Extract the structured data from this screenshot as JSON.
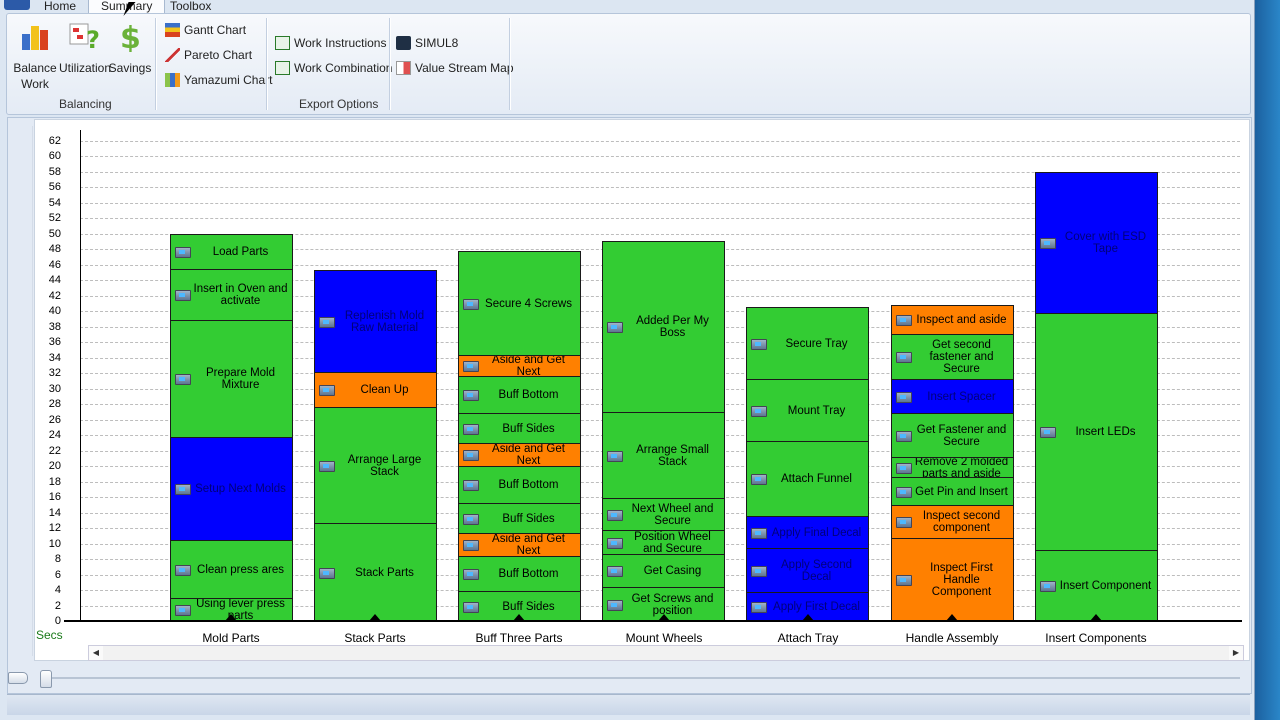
{
  "tabs": [
    "Home",
    "Summary",
    "Toolbox"
  ],
  "active_tab": "Summary",
  "ribbon": {
    "balancing": {
      "label": "Balancing",
      "buttons": [
        "Balance Work",
        "Utilization",
        "Savings"
      ]
    },
    "export": {
      "label": "Export Options",
      "charts": [
        "Gantt Chart",
        "Pareto Chart",
        "Yamazumi Chart"
      ],
      "docs": [
        "Work Instructions",
        "Work Combination"
      ],
      "other": [
        "SIMUL8",
        "Value Stream Map"
      ]
    }
  },
  "chart_data": {
    "type": "bar",
    "stacked": true,
    "ylabel": "Secs",
    "ylim": [
      0,
      62
    ],
    "yticks": [
      0,
      2,
      4,
      6,
      8,
      10,
      12,
      14,
      16,
      18,
      20,
      22,
      24,
      26,
      28,
      30,
      32,
      34,
      36,
      38,
      40,
      42,
      44,
      46,
      48,
      50,
      52,
      54,
      56,
      58,
      60,
      62
    ],
    "grid": true,
    "colors": {
      "value_added": "#33cc33",
      "non_value_added": "#ff8000",
      "blue": "#0000ff"
    },
    "categories": [
      "Mold Parts",
      "Stack Parts",
      "Buff Three Parts",
      "Mount Wheels",
      "Attach Tray",
      "Handle Assembly",
      "Insert Components"
    ],
    "stacks": [
      [
        {
          "label": "Using lever press parts",
          "value": 3.0,
          "color": "#33cc33"
        },
        {
          "label": "Clean press ares",
          "value": 7.5,
          "color": "#33cc33"
        },
        {
          "label": "Setup Next Molds",
          "value": 13.3,
          "color": "#0000ff"
        },
        {
          "label": "Prepare Mold Mixture",
          "value": 15.1,
          "color": "#33cc33"
        },
        {
          "label": "Insert in Oven and activate",
          "value": 6.6,
          "color": "#33cc33"
        },
        {
          "label": "Load Parts",
          "value": 4.5,
          "color": "#33cc33"
        }
      ],
      [
        {
          "label": "Stack Parts",
          "value": 12.7,
          "color": "#33cc33"
        },
        {
          "label": "Arrange Large Stack",
          "value": 15.0,
          "color": "#33cc33"
        },
        {
          "label": "Clean Up",
          "value": 4.4,
          "color": "#ff8000"
        },
        {
          "label": "Replenish Mold Raw Material",
          "value": 13.2,
          "color": "#0000ff"
        }
      ],
      [
        {
          "label": "Buff Sides",
          "value": 3.9,
          "color": "#33cc33"
        },
        {
          "label": "Buff Bottom",
          "value": 4.5,
          "color": "#33cc33"
        },
        {
          "label": "Aside and Get Next",
          "value": 3.0,
          "color": "#ff8000"
        },
        {
          "label": "Buff Sides",
          "value": 3.9,
          "color": "#33cc33"
        },
        {
          "label": "Buff Bottom",
          "value": 4.7,
          "color": "#33cc33"
        },
        {
          "label": "Aside and Get Next",
          "value": 3.0,
          "color": "#ff8000"
        },
        {
          "label": "Buff Sides",
          "value": 3.9,
          "color": "#33cc33"
        },
        {
          "label": "Buff Bottom",
          "value": 4.7,
          "color": "#33cc33"
        },
        {
          "label": "Aside and Get Next",
          "value": 2.8,
          "color": "#ff8000"
        },
        {
          "label": "Secure 4 Screws",
          "value": 13.4,
          "color": "#33cc33"
        }
      ],
      [
        {
          "label": "Get Screws and position",
          "value": 4.4,
          "color": "#33cc33"
        },
        {
          "label": "Get Casing",
          "value": 4.3,
          "color": "#33cc33"
        },
        {
          "label": "Position Wheel and Secure",
          "value": 3.1,
          "color": "#33cc33"
        },
        {
          "label": "Next Wheel and Secure",
          "value": 4.1,
          "color": "#33cc33"
        },
        {
          "label": "Arrange Small Stack",
          "value": 11.1,
          "color": "#33cc33"
        },
        {
          "label": "Added Per My Boss",
          "value": 22.1,
          "color": "#33cc33"
        }
      ],
      [
        {
          "label": "Apply First Decal",
          "value": 3.7,
          "color": "#0000ff"
        },
        {
          "label": "Apply Second Decal",
          "value": 5.7,
          "color": "#0000ff"
        },
        {
          "label": "Apply Final Decal",
          "value": 4.1,
          "color": "#0000ff"
        },
        {
          "label": "Attach Funnel",
          "value": 9.7,
          "color": "#33cc33"
        },
        {
          "label": "Mount Tray",
          "value": 8.0,
          "color": "#33cc33"
        },
        {
          "label": "Secure Tray",
          "value": 9.4,
          "color": "#33cc33"
        }
      ],
      [
        {
          "label": "Inspect First Handle Component",
          "value": 10.7,
          "color": "#ff8000"
        },
        {
          "label": "Inspect second component",
          "value": 4.3,
          "color": "#ff8000"
        },
        {
          "label": "Get Pin and Insert",
          "value": 3.6,
          "color": "#33cc33"
        },
        {
          "label": "Remove 2 molded parts and aside",
          "value": 2.6,
          "color": "#33cc33"
        },
        {
          "label": "Get Fastener and Secure",
          "value": 5.7,
          "color": "#33cc33"
        },
        {
          "label": "Insert Spacer",
          "value": 4.4,
          "color": "#0000ff"
        },
        {
          "label": "Get second fastener and Secure",
          "value": 5.8,
          "color": "#33cc33"
        },
        {
          "label": "Inspect and aside",
          "value": 3.7,
          "color": "#ff8000"
        }
      ],
      [
        {
          "label": "Insert Component",
          "value": 9.2,
          "color": "#33cc33"
        },
        {
          "label": "Insert LEDs",
          "value": 30.6,
          "color": "#33cc33"
        },
        {
          "label": "Cover with ESD Tape",
          "value": 18.2,
          "color": "#0000ff"
        }
      ]
    ]
  }
}
